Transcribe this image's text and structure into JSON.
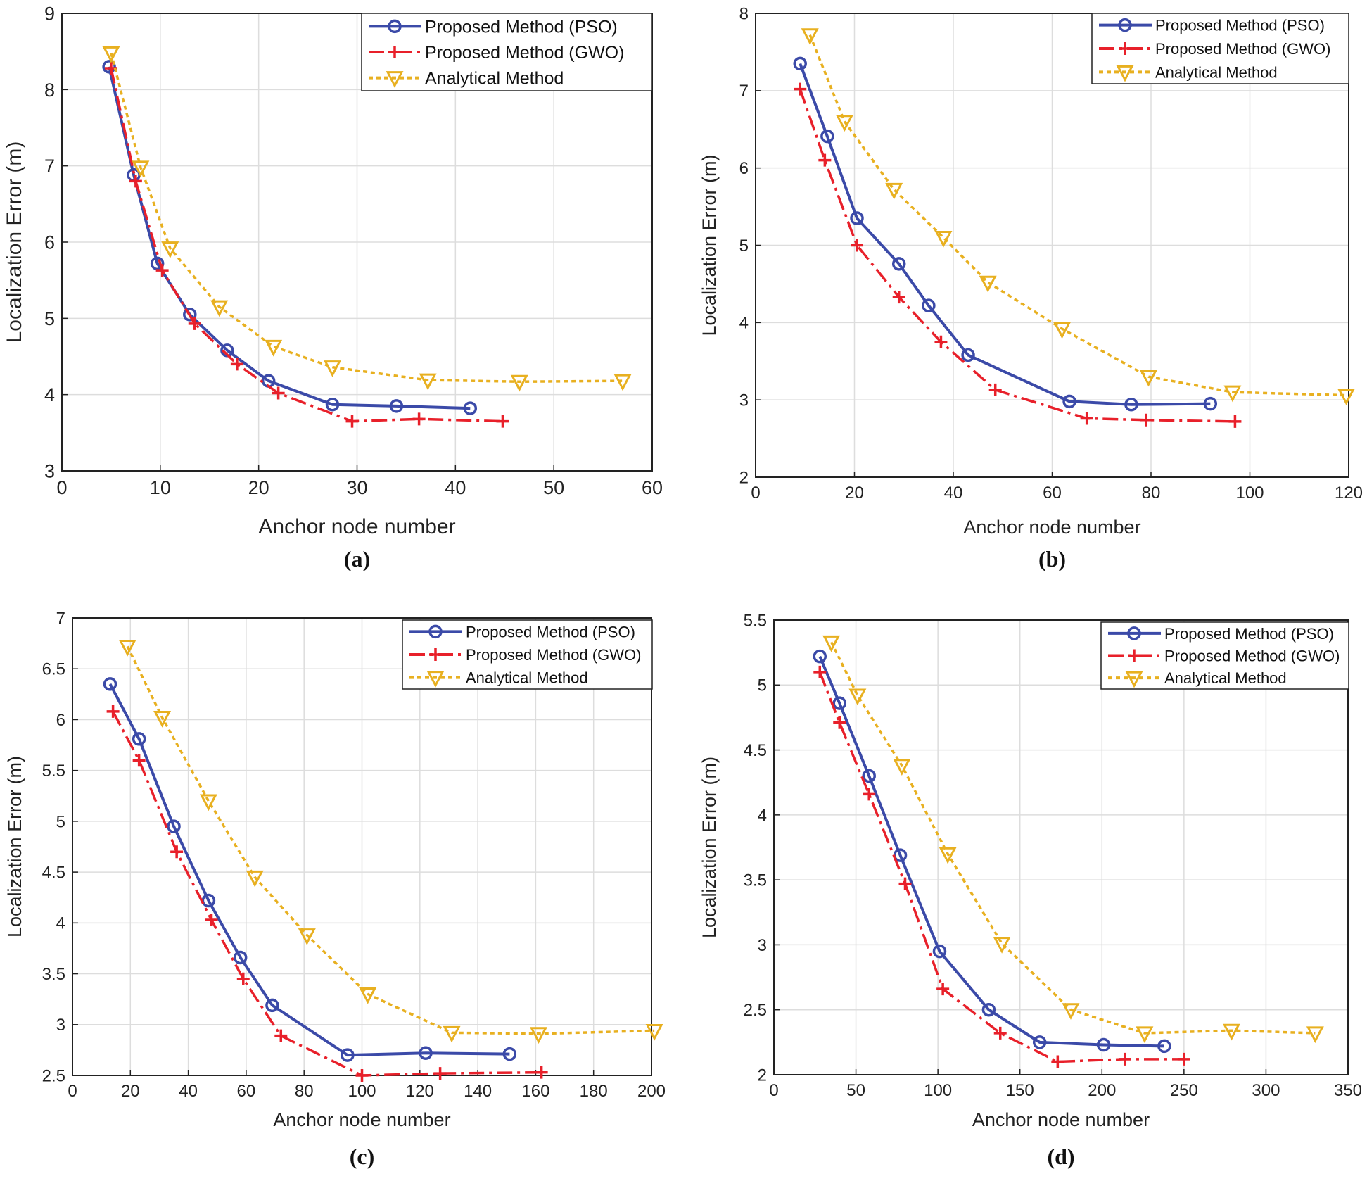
{
  "colors": {
    "pso": "#3b4aa8",
    "gwo": "#e8202a",
    "analytical": "#e8b020",
    "grid": "#dddddd"
  },
  "chart_data": [
    {
      "type": "line",
      "caption": "(a)",
      "xlabel": "Anchor node number",
      "ylabel": "Localization Error (m)",
      "xlim": [
        0,
        60
      ],
      "ylim": [
        3,
        9
      ],
      "xticks": [
        0,
        10,
        20,
        30,
        40,
        50,
        60
      ],
      "yticks": [
        3,
        4,
        5,
        6,
        7,
        8,
        9
      ],
      "grid": true,
      "legend_position": "top-right",
      "series": [
        {
          "name": "Proposed Method (PSO)",
          "key": "pso",
          "marker": "circle",
          "x": [
            4.8,
            7.3,
            9.7,
            13,
            16.8,
            21,
            27.5,
            34,
            41.5
          ],
          "y": [
            8.3,
            6.88,
            5.72,
            5.05,
            4.58,
            4.18,
            3.87,
            3.85,
            3.82
          ]
        },
        {
          "name": "Proposed Method (GWO)",
          "key": "gwo",
          "marker": "plus",
          "x": [
            5,
            7.5,
            10.2,
            13.5,
            17.8,
            22,
            29.5,
            36.3,
            44.8
          ],
          "y": [
            8.28,
            6.8,
            5.63,
            4.93,
            4.4,
            4.02,
            3.65,
            3.68,
            3.65
          ]
        },
        {
          "name": "Analytical Method",
          "key": "analytical",
          "marker": "triangle-down",
          "x": [
            5,
            8,
            11,
            16,
            21.5,
            27.5,
            37.2,
            46.5,
            57
          ],
          "y": [
            8.48,
            6.98,
            5.92,
            5.15,
            4.63,
            4.36,
            4.19,
            4.17,
            4.18
          ]
        }
      ]
    },
    {
      "type": "line",
      "caption": "(b)",
      "xlabel": "Anchor node number",
      "ylabel": "Localization Error (m)",
      "xlim": [
        0,
        120
      ],
      "ylim": [
        2,
        8
      ],
      "xticks": [
        0,
        20,
        40,
        60,
        80,
        100,
        120
      ],
      "yticks": [
        2,
        3,
        4,
        5,
        6,
        7,
        8
      ],
      "grid": true,
      "legend_position": "top-right",
      "series": [
        {
          "name": "Proposed Method (PSO)",
          "key": "pso",
          "marker": "circle",
          "x": [
            9,
            14.5,
            20.5,
            29,
            35,
            43,
            63.5,
            76,
            92
          ],
          "y": [
            7.35,
            6.41,
            5.35,
            4.76,
            4.22,
            3.58,
            2.98,
            2.94,
            2.95
          ]
        },
        {
          "name": "Proposed Method (GWO)",
          "key": "gwo",
          "marker": "plus",
          "x": [
            9,
            14,
            20.5,
            29,
            37.5,
            48.5,
            67,
            79,
            97
          ],
          "y": [
            7.02,
            6.1,
            5.0,
            4.33,
            3.75,
            3.13,
            2.76,
            2.74,
            2.72
          ]
        },
        {
          "name": "Analytical Method",
          "key": "analytical",
          "marker": "triangle-down",
          "x": [
            11,
            18,
            28,
            38,
            47,
            62,
            79.5,
            96.5,
            119.5
          ],
          "y": [
            7.72,
            6.6,
            5.72,
            5.1,
            4.52,
            3.92,
            3.3,
            3.1,
            3.06
          ]
        }
      ]
    },
    {
      "type": "line",
      "caption": "(c)",
      "xlabel": "Anchor node number",
      "ylabel": "Localization Error (m)",
      "xlim": [
        0,
        200
      ],
      "ylim": [
        2.5,
        7
      ],
      "xticks": [
        0,
        20,
        40,
        60,
        80,
        100,
        120,
        140,
        160,
        180,
        200
      ],
      "yticks": [
        2.5,
        3,
        3.5,
        4,
        4.5,
        5,
        5.5,
        6,
        6.5,
        7
      ],
      "grid": true,
      "legend_position": "top-right",
      "series": [
        {
          "name": "Proposed Method (PSO)",
          "key": "pso",
          "marker": "circle",
          "x": [
            13,
            23,
            35,
            47,
            58,
            69,
            95,
            122,
            151
          ],
          "y": [
            6.35,
            5.81,
            4.95,
            4.22,
            3.66,
            3.19,
            2.7,
            2.72,
            2.71
          ]
        },
        {
          "name": "Proposed Method (GWO)",
          "key": "gwo",
          "marker": "plus",
          "x": [
            14,
            23,
            36,
            48,
            59,
            72,
            100,
            127,
            162
          ],
          "y": [
            6.08,
            5.6,
            4.7,
            4.03,
            3.45,
            2.89,
            2.5,
            2.52,
            2.53
          ]
        },
        {
          "name": "Analytical Method",
          "key": "analytical",
          "marker": "triangle-down",
          "x": [
            19,
            31,
            47,
            63,
            81,
            102,
            131,
            161,
            201
          ],
          "y": [
            6.72,
            6.02,
            5.2,
            4.45,
            3.88,
            3.3,
            2.92,
            2.91,
            2.94
          ]
        }
      ]
    },
    {
      "type": "line",
      "caption": "(d)",
      "xlabel": "Anchor node number",
      "ylabel": "Localization Error (m)",
      "xlim": [
        0,
        350
      ],
      "ylim": [
        2,
        5.5
      ],
      "xticks": [
        0,
        50,
        100,
        150,
        200,
        250,
        300,
        350
      ],
      "yticks": [
        2,
        2.5,
        3,
        3.5,
        4,
        4.5,
        5,
        5.5
      ],
      "grid": true,
      "legend_position": "top-right",
      "series": [
        {
          "name": "Proposed Method (PSO)",
          "key": "pso",
          "marker": "circle",
          "x": [
            28,
            40,
            58,
            77,
            101,
            131,
            162,
            201,
            238
          ],
          "y": [
            5.22,
            4.86,
            4.3,
            3.69,
            2.95,
            2.5,
            2.25,
            2.23,
            2.22
          ]
        },
        {
          "name": "Proposed Method (GWO)",
          "key": "gwo",
          "marker": "plus",
          "x": [
            28,
            40,
            58,
            80,
            103,
            138,
            173,
            214,
            250
          ],
          "y": [
            5.1,
            4.71,
            4.16,
            3.47,
            2.66,
            2.32,
            2.1,
            2.12,
            2.12
          ]
        },
        {
          "name": "Analytical Method",
          "key": "analytical",
          "marker": "triangle-down",
          "x": [
            35,
            51,
            78,
            106,
            139,
            181,
            226,
            279,
            330
          ],
          "y": [
            5.33,
            4.92,
            4.38,
            3.7,
            3.01,
            2.5,
            2.32,
            2.34,
            2.32
          ]
        }
      ]
    }
  ]
}
